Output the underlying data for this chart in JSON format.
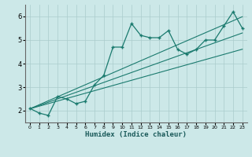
{
  "x": [
    0,
    1,
    2,
    3,
    4,
    5,
    6,
    7,
    8,
    9,
    10,
    11,
    12,
    13,
    14,
    15,
    16,
    17,
    18,
    19,
    20,
    21,
    22,
    23
  ],
  "y_main": [
    2.1,
    1.9,
    1.8,
    2.6,
    2.5,
    2.3,
    2.4,
    3.1,
    3.5,
    4.7,
    4.7,
    5.7,
    5.2,
    5.1,
    5.1,
    5.4,
    4.6,
    4.4,
    4.6,
    5.0,
    5.0,
    5.6,
    6.2,
    5.5
  ],
  "y_line1": [
    2.08,
    2.19,
    2.3,
    2.41,
    2.52,
    2.63,
    2.74,
    2.85,
    2.96,
    3.07,
    3.18,
    3.29,
    3.4,
    3.51,
    3.62,
    3.73,
    3.84,
    3.95,
    4.06,
    4.17,
    4.28,
    4.39,
    4.5,
    4.61
  ],
  "y_line2": [
    2.08,
    2.22,
    2.36,
    2.5,
    2.64,
    2.78,
    2.92,
    3.06,
    3.2,
    3.34,
    3.48,
    3.62,
    3.76,
    3.9,
    4.04,
    4.18,
    4.32,
    4.46,
    4.6,
    4.74,
    4.88,
    5.02,
    5.16,
    5.3
  ],
  "y_line3": [
    2.08,
    2.25,
    2.42,
    2.59,
    2.76,
    2.93,
    3.1,
    3.27,
    3.44,
    3.61,
    3.78,
    3.95,
    4.12,
    4.29,
    4.46,
    4.63,
    4.8,
    4.97,
    5.14,
    5.31,
    5.48,
    5.65,
    5.82,
    5.99
  ],
  "line_color": "#1a7a6e",
  "bg_color": "#cce8e8",
  "grid_color": "#aacccc",
  "xlabel": "Humidex (Indice chaleur)",
  "xlim": [
    -0.5,
    23.5
  ],
  "ylim": [
    1.5,
    6.5
  ],
  "yticks": [
    2,
    3,
    4,
    5,
    6
  ],
  "xticks": [
    0,
    1,
    2,
    3,
    4,
    5,
    6,
    7,
    8,
    9,
    10,
    11,
    12,
    13,
    14,
    15,
    16,
    17,
    18,
    19,
    20,
    21,
    22,
    23
  ]
}
